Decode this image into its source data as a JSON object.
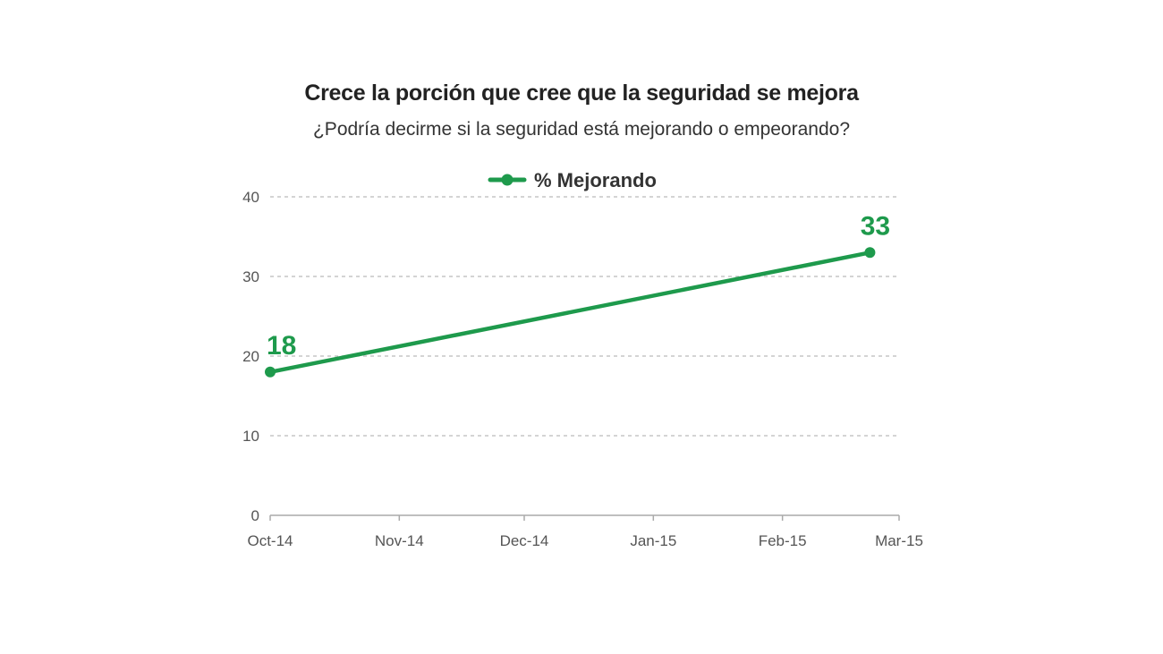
{
  "chart_data": {
    "type": "line",
    "title": "Crece la porción que cree que la seguridad se mejora",
    "subtitle": "¿Podría decirme si la seguridad está mejorando o empeorando?",
    "legend": {
      "placement": "top-center"
    },
    "series": [
      {
        "name": "% Mejorando",
        "color": "#1e9a4c",
        "points": [
          {
            "x": "2014-10-01",
            "y": 18,
            "label": "18"
          },
          {
            "x": "2015-02-22",
            "y": 33,
            "label": "33"
          }
        ]
      }
    ],
    "x_ticks": [
      {
        "date": "2014-10-01",
        "label": "Oct-14"
      },
      {
        "date": "2014-11-01",
        "label": "Nov-14"
      },
      {
        "date": "2014-12-01",
        "label": "Dec-14"
      },
      {
        "date": "2015-01-01",
        "label": "Jan-15"
      },
      {
        "date": "2015-02-01",
        "label": "Feb-15"
      },
      {
        "date": "2015-03-01",
        "label": "Mar-15"
      }
    ],
    "y_ticks": [
      0,
      10,
      20,
      30,
      40
    ],
    "ylim": [
      0,
      40
    ],
    "xlim": [
      "2014-10-01",
      "2015-03-01"
    ],
    "grid": "horizontal-dashed"
  }
}
